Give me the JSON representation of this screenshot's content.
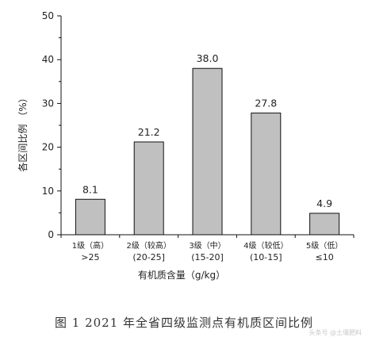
{
  "chart_data": {
    "type": "bar",
    "categories": [
      "1级（高）",
      "2级（较高）",
      "3级（中）",
      "4级（较低）",
      "5级（低）"
    ],
    "category_ranges": [
      ">25",
      "(20-25]",
      "(15-20]",
      "(10-15]",
      "≤10"
    ],
    "values": [
      8.1,
      21.2,
      38.0,
      27.8,
      4.9
    ],
    "value_labels": [
      "8.1",
      "21.2",
      "38.0",
      "27.8",
      "4.9"
    ],
    "xlabel": "有机质含量（g/kg）",
    "ylabel": "各区间比例 （%）",
    "ylim": [
      0,
      50
    ],
    "yticks": [
      "0",
      "10",
      "20",
      "30",
      "40",
      "50"
    ],
    "grid": false,
    "colors": {
      "bar_fill": "#c0c0c0",
      "bar_stroke": "#111111",
      "axis": "#111111"
    }
  },
  "caption": "图 1   2021 年全省四级监测点有机质区间比例",
  "watermark": "头条号 @土壤肥料"
}
